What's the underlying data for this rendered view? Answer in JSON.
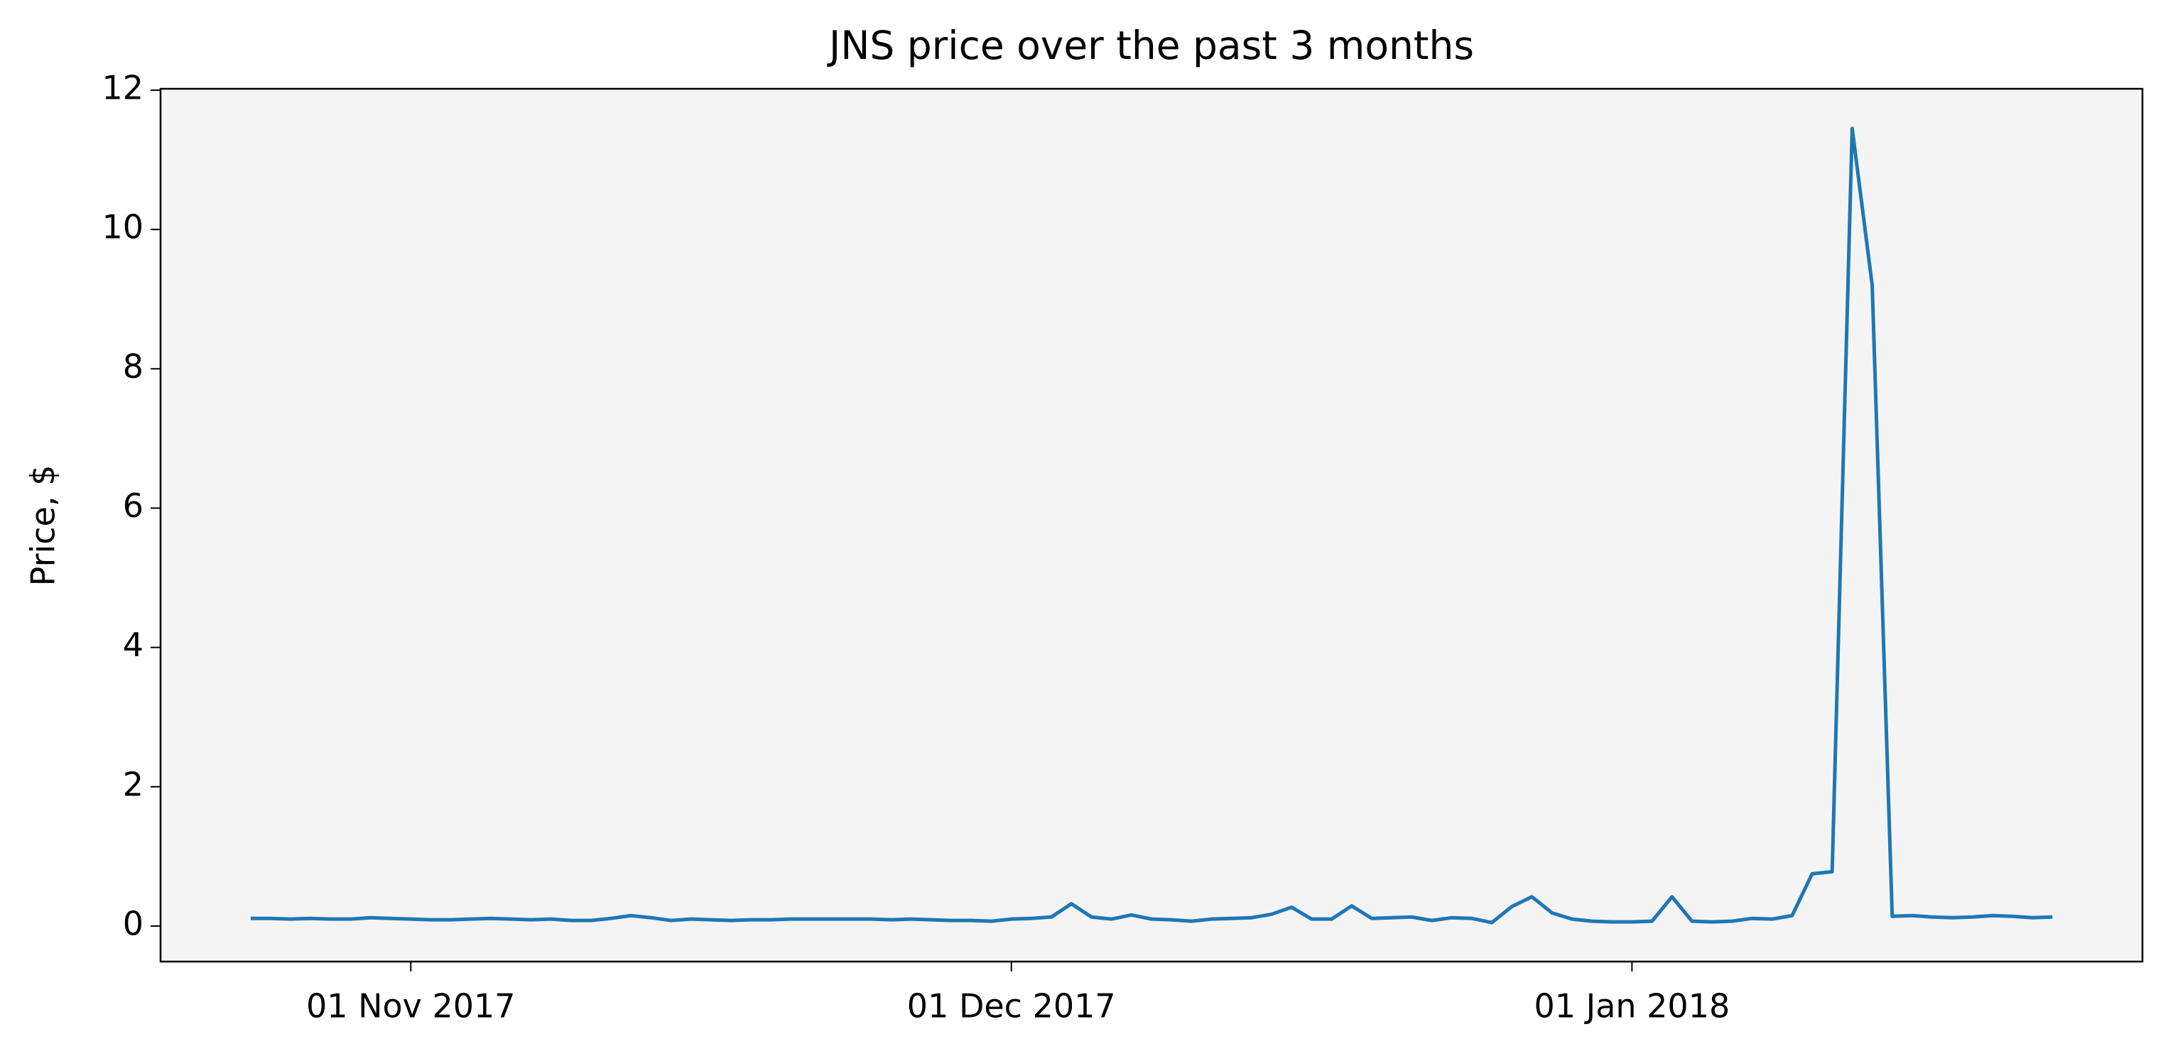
{
  "chart_data": {
    "type": "line",
    "title": "JNS price over the past 3 months",
    "ylabel": "Price, $",
    "x": [
      "2017-10-24",
      "2017-10-25",
      "2017-10-26",
      "2017-10-27",
      "2017-10-28",
      "2017-10-29",
      "2017-10-30",
      "2017-10-31",
      "2017-11-01",
      "2017-11-02",
      "2017-11-03",
      "2017-11-04",
      "2017-11-05",
      "2017-11-06",
      "2017-11-07",
      "2017-11-08",
      "2017-11-09",
      "2017-11-10",
      "2017-11-11",
      "2017-11-12",
      "2017-11-13",
      "2017-11-14",
      "2017-11-15",
      "2017-11-16",
      "2017-11-17",
      "2017-11-18",
      "2017-11-19",
      "2017-11-20",
      "2017-11-21",
      "2017-11-22",
      "2017-11-23",
      "2017-11-24",
      "2017-11-25",
      "2017-11-26",
      "2017-11-27",
      "2017-11-28",
      "2017-11-29",
      "2017-11-30",
      "2017-12-01",
      "2017-12-02",
      "2017-12-03",
      "2017-12-04",
      "2017-12-05",
      "2017-12-06",
      "2017-12-07",
      "2017-12-08",
      "2017-12-09",
      "2017-12-10",
      "2017-12-11",
      "2017-12-12",
      "2017-12-13",
      "2017-12-14",
      "2017-12-15",
      "2017-12-16",
      "2017-12-17",
      "2017-12-18",
      "2017-12-19",
      "2017-12-20",
      "2017-12-21",
      "2017-12-22",
      "2017-12-23",
      "2017-12-24",
      "2017-12-25",
      "2017-12-26",
      "2017-12-27",
      "2017-12-28",
      "2017-12-29",
      "2017-12-30",
      "2017-12-31",
      "2018-01-01",
      "2018-01-02",
      "2018-01-03",
      "2018-01-04",
      "2018-01-05",
      "2018-01-06",
      "2018-01-07",
      "2018-01-08",
      "2018-01-09",
      "2018-01-10",
      "2018-01-11",
      "2018-01-12",
      "2018-01-13",
      "2018-01-14",
      "2018-01-15",
      "2018-01-16",
      "2018-01-17",
      "2018-01-18",
      "2018-01-19",
      "2018-01-20",
      "2018-01-21",
      "2018-01-22"
    ],
    "values": [
      0.11,
      0.11,
      0.1,
      0.11,
      0.1,
      0.1,
      0.12,
      0.11,
      0.1,
      0.09,
      0.09,
      0.1,
      0.11,
      0.1,
      0.09,
      0.1,
      0.08,
      0.08,
      0.11,
      0.15,
      0.12,
      0.08,
      0.1,
      0.09,
      0.08,
      0.09,
      0.09,
      0.1,
      0.1,
      0.1,
      0.1,
      0.1,
      0.09,
      0.1,
      0.09,
      0.08,
      0.08,
      0.07,
      0.1,
      0.11,
      0.13,
      0.32,
      0.13,
      0.1,
      0.16,
      0.1,
      0.09,
      0.07,
      0.1,
      0.11,
      0.12,
      0.17,
      0.27,
      0.1,
      0.1,
      0.29,
      0.11,
      0.12,
      0.13,
      0.08,
      0.12,
      0.11,
      0.05,
      0.28,
      0.42,
      0.19,
      0.1,
      0.07,
      0.06,
      0.06,
      0.07,
      0.42,
      0.07,
      0.06,
      0.07,
      0.11,
      0.1,
      0.15,
      0.75,
      0.78,
      11.45,
      9.2,
      0.14,
      0.15,
      0.13,
      0.12,
      0.13,
      0.15,
      0.14,
      0.12,
      0.13
    ],
    "color": "#1f77b4",
    "xlim": [
      "2017-10-19T12:00",
      "2018-01-26T12:00"
    ],
    "xticks": [
      {
        "value": "2017-11-01",
        "label": "01 Nov 2017"
      },
      {
        "value": "2017-12-01",
        "label": "01 Dec 2017"
      },
      {
        "value": "2018-01-01",
        "label": "01 Jan 2018"
      }
    ],
    "ylim": [
      -0.51,
      12.02
    ],
    "yticks": [
      0,
      2,
      4,
      6,
      8,
      10,
      12
    ],
    "grid": false
  }
}
